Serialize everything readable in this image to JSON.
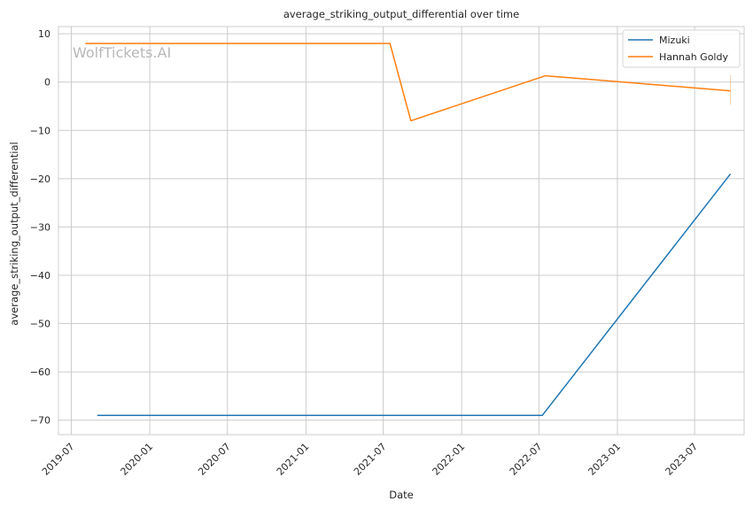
{
  "chart_data": {
    "type": "line",
    "title": "average_striking_output_differential over time",
    "xlabel": "Date",
    "ylabel": "average_striking_output_differential",
    "watermark": "WolfTickets.AI",
    "x_ticks": [
      "2019-07",
      "2020-01",
      "2020-07",
      "2021-01",
      "2021-07",
      "2022-01",
      "2022-07",
      "2023-01",
      "2023-07"
    ],
    "y_ticks": [
      10,
      0,
      -10,
      -20,
      -30,
      -40,
      -50,
      -60,
      -70
    ],
    "y_tick_labels": [
      "10",
      "0",
      "−10",
      "−20",
      "−30",
      "−40",
      "−50",
      "−60",
      "−70"
    ],
    "xlim": [
      "2019-06-01",
      "2023-10-25"
    ],
    "ylim": [
      -73,
      11.5
    ],
    "grid": true,
    "legend_position": "top-right",
    "series": [
      {
        "name": "Mizuki",
        "color": "#1f77b4",
        "points": [
          {
            "x": "2019-08-31",
            "y": -69
          },
          {
            "x": "2022-07-09",
            "y": -69
          },
          {
            "x": "2023-09-23",
            "y": -19
          }
        ]
      },
      {
        "name": "Hannah Goldy",
        "color": "#ff7f0e",
        "points": [
          {
            "x": "2019-08-03",
            "y": 8
          },
          {
            "x": "2021-07-17",
            "y": 8
          },
          {
            "x": "2021-09-04",
            "y": -8
          },
          {
            "x": "2022-07-16",
            "y": 1.3
          },
          {
            "x": "2023-09-23",
            "y": -1.8
          }
        ]
      }
    ]
  }
}
